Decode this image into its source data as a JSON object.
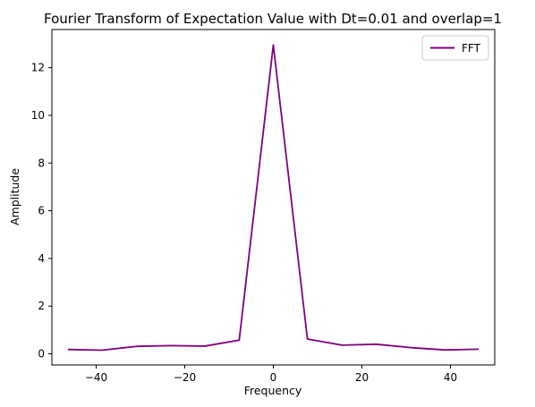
{
  "chart_data": {
    "type": "line",
    "title": "Fourier Transform of Expectation Value with Dt=0.01 and overlap=1",
    "xlabel": "Frequency",
    "ylabel": "Amplitude",
    "xlim": [
      -50,
      50
    ],
    "ylim": [
      -0.47,
      13.6
    ],
    "xticks": [
      -40,
      -20,
      0,
      20,
      40
    ],
    "xtick_labels": [
      "−40",
      "−20",
      "0",
      "20",
      "40"
    ],
    "yticks": [
      0,
      2,
      4,
      6,
      8,
      10,
      12
    ],
    "ytick_labels": [
      "0",
      "2",
      "4",
      "6",
      "8",
      "10",
      "12"
    ],
    "grid": false,
    "legend": "top-right",
    "series": [
      {
        "name": "FFT",
        "color": "#800080",
        "x": [
          -46.4,
          -38.7,
          -30.9,
          -23.2,
          -15.5,
          -7.7,
          0,
          7.7,
          15.5,
          23.2,
          30.9,
          38.7,
          46.4
        ],
        "y": [
          0.18,
          0.15,
          0.31,
          0.34,
          0.32,
          0.57,
          12.95,
          0.62,
          0.36,
          0.4,
          0.26,
          0.16,
          0.19
        ]
      }
    ]
  }
}
